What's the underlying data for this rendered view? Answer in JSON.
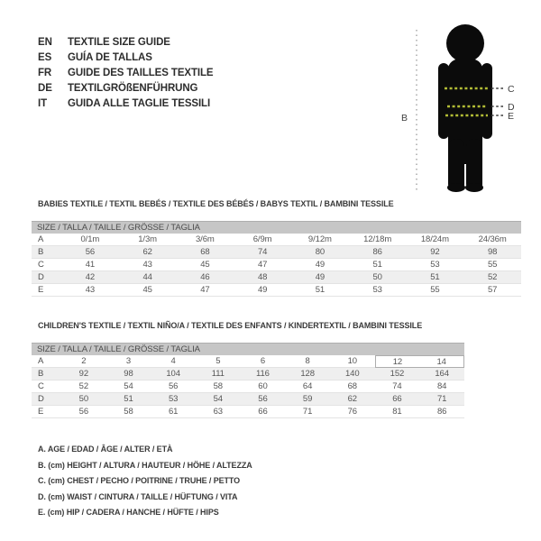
{
  "languages": [
    {
      "code": "EN",
      "label": "TEXTILE SIZE GUIDE"
    },
    {
      "code": "ES",
      "label": "GUÍA DE TALLAS"
    },
    {
      "code": "FR",
      "label": "GUIDE DES TAILLES TEXTILE"
    },
    {
      "code": "DE",
      "label": "TEXTILGRÖßENFÜHRUNG"
    },
    {
      "code": "IT",
      "label": "GUIDA ALLE TAGLIE TESSILI"
    }
  ],
  "figure": {
    "labels": {
      "height": "B",
      "chest": "C",
      "waist": "D",
      "hip": "E"
    },
    "colors": {
      "silhouette": "#0b0b0b",
      "measure_dash": "#b2bc35",
      "callout_dash": "#3c3c3c",
      "height_dots": "#9a9a9a"
    }
  },
  "babies_table": {
    "title": "BABIES TEXTILE / TEXTIL BEBÉS / TEXTILE DES BÉBÉS / BABYS TEXTIL / BAMBINI TESSILE",
    "size_header": "SIZE / TALLA / TAILLE / GRÖSSE / TAGLIA",
    "rows": [
      {
        "label": "A",
        "values": [
          "0/1m",
          "1/3m",
          "3/6m",
          "6/9m",
          "9/12m",
          "12/18m",
          "18/24m",
          "24/36m"
        ]
      },
      {
        "label": "B",
        "values": [
          "56",
          "62",
          "68",
          "74",
          "80",
          "86",
          "92",
          "98"
        ]
      },
      {
        "label": "C",
        "values": [
          "41",
          "43",
          "45",
          "47",
          "49",
          "51",
          "53",
          "55"
        ]
      },
      {
        "label": "D",
        "values": [
          "42",
          "44",
          "46",
          "48",
          "49",
          "50",
          "51",
          "52"
        ]
      },
      {
        "label": "E",
        "values": [
          "43",
          "45",
          "47",
          "49",
          "51",
          "53",
          "55",
          "57"
        ]
      }
    ]
  },
  "children_table": {
    "title": "CHILDREN'S TEXTILE / TEXTIL NIÑO/A / TEXTILE DES ENFANTS / KINDERTEXTIL / BAMBINI TESSILE",
    "size_header": "SIZE / TALLA / TAILLE / GRÖSSE / TAGLIA",
    "boxed_cells": [
      [
        0,
        7
      ],
      [
        0,
        8
      ]
    ],
    "rows": [
      {
        "label": "A",
        "values": [
          "2",
          "3",
          "4",
          "5",
          "6",
          "8",
          "10",
          "12",
          "14"
        ]
      },
      {
        "label": "B",
        "values": [
          "92",
          "98",
          "104",
          "111",
          "116",
          "128",
          "140",
          "152",
          "164"
        ]
      },
      {
        "label": "C",
        "values": [
          "52",
          "54",
          "56",
          "58",
          "60",
          "64",
          "68",
          "74",
          "84"
        ]
      },
      {
        "label": "D",
        "values": [
          "50",
          "51",
          "53",
          "54",
          "56",
          "59",
          "62",
          "66",
          "71"
        ]
      },
      {
        "label": "E",
        "values": [
          "56",
          "58",
          "61",
          "63",
          "66",
          "71",
          "76",
          "81",
          "86"
        ]
      }
    ]
  },
  "legend": [
    "A. AGE / EDAD / ÂGE / ALTER / ETÀ",
    "B. (cm) HEIGHT / ALTURA / HAUTEUR / HÖHE / ALTEZZA",
    "C. (cm) CHEST / PECHO / POITRINE / TRUHE / PETTO",
    "D. (cm) WAIST / CINTURA / TAILLE / HÜFTUNG / VITA",
    "E. (cm) HIP / CADERA / HANCHE / HÜFTE / HIPS"
  ]
}
